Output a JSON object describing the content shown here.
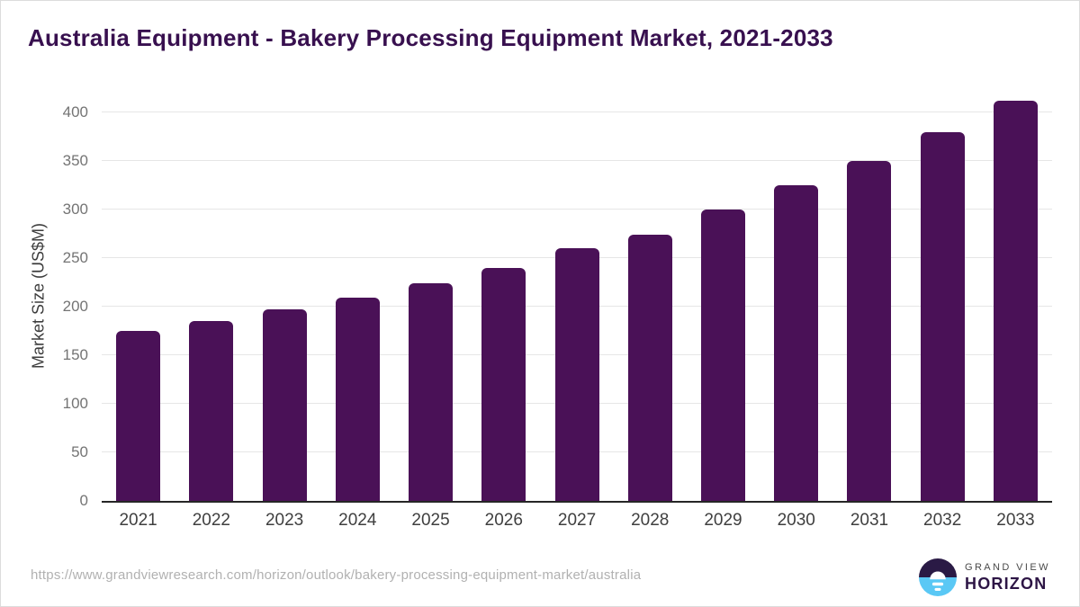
{
  "chart_data": {
    "type": "bar",
    "title": "Australia Equipment - Bakery Processing Equipment Market, 2021-2033",
    "categories": [
      "2021",
      "2022",
      "2023",
      "2024",
      "2025",
      "2026",
      "2027",
      "2028",
      "2029",
      "2030",
      "2031",
      "2032",
      "2033"
    ],
    "values": [
      175,
      185,
      197,
      209,
      224,
      240,
      260,
      274,
      300,
      325,
      350,
      380,
      412
    ],
    "xlabel": "",
    "ylabel": "Market Size (US$M)",
    "ylim": [
      0,
      425
    ],
    "yticks": [
      0,
      50,
      100,
      150,
      200,
      250,
      300,
      350,
      400
    ],
    "grid": "horizontal",
    "legend": "none",
    "bar_color": "#4a1157"
  },
  "footer": {
    "source_url": "https://www.grandviewresearch.com/horizon/outlook/bakery-processing-equipment-market/australia",
    "logo": {
      "brand_line1": "GRAND VIEW",
      "brand_line2": "HORIZON",
      "icon": "horizon-sunrise-icon"
    }
  },
  "colors": {
    "title_text": "#38104f",
    "bar": "#4a1157",
    "axis_line": "#262626",
    "gridline": "#e6e6e6",
    "y_tick_text": "#747474",
    "x_label_text": "#3f3f3f",
    "url_text": "#b1b1b1",
    "logo_dark_purple": "#2a1a45",
    "logo_sky_blue": "#5ac8f5"
  }
}
